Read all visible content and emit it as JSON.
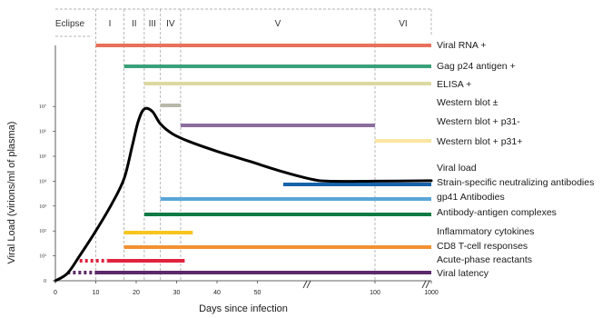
{
  "chart_data": {
    "type": "line",
    "xlabel": "Days since infection",
    "ylabel": "Viral Load (virions/ml of plasma)",
    "x_ticks": [
      "0",
      "10",
      "20",
      "30",
      "40",
      "50",
      "100",
      "1000"
    ],
    "y_ticks": [
      "0",
      "10¹",
      "10²",
      "10³",
      "10⁴",
      "10⁵",
      "10⁶",
      "10⁷"
    ],
    "stages": [
      "Eclipse",
      "I",
      "II",
      "III",
      "IV",
      "V",
      "VI"
    ],
    "stage_boundaries_days": [
      10,
      17,
      22,
      26,
      31,
      100
    ],
    "viral_load_curve": {
      "label": "Viral load",
      "points": [
        {
          "day": 0,
          "log10": 0
        },
        {
          "day": 3,
          "log10": 0.3
        },
        {
          "day": 6,
          "log10": 1
        },
        {
          "day": 10,
          "log10": 2
        },
        {
          "day": 14,
          "log10": 3.1
        },
        {
          "day": 17,
          "log10": 4.1
        },
        {
          "day": 19,
          "log10": 5.4
        },
        {
          "day": 20.5,
          "log10": 6.4
        },
        {
          "day": 22,
          "log10": 6.9
        },
        {
          "day": 24,
          "log10": 6.8
        },
        {
          "day": 26,
          "log10": 6.3
        },
        {
          "day": 29,
          "log10": 5.9
        },
        {
          "day": 33,
          "log10": 5.6
        },
        {
          "day": 40,
          "log10": 5.2
        },
        {
          "day": 48,
          "log10": 4.8
        },
        {
          "day": 60,
          "log10": 4.4
        },
        {
          "day": 72,
          "log10": 4.1
        },
        {
          "day": 80,
          "log10": 4.0
        },
        {
          "day": 100,
          "log10": 4.0
        },
        {
          "day": 1000,
          "log10": 4.02
        }
      ],
      "color": "#000000"
    },
    "markers": [
      {
        "label": "Viral RNA +",
        "start_day": 10,
        "end_day": 1000,
        "color": "#e8705c",
        "dashed_until_day": null
      },
      {
        "label": "Gag p24 antigen +",
        "start_day": 17,
        "end_day": 1000,
        "color": "#3aa07a",
        "dashed_until_day": null
      },
      {
        "label": "ELISA +",
        "start_day": 22,
        "end_day": 1000,
        "color": "#dcd9a0",
        "dashed_until_day": null
      },
      {
        "label": "Western blot ±",
        "start_day": 26,
        "end_day": 31,
        "color": "#b9b9aa",
        "dashed_until_day": null
      },
      {
        "label": "Western blot + p31-",
        "start_day": 31,
        "end_day": 100,
        "color": "#8c6d9e",
        "dashed_until_day": null
      },
      {
        "label": "Western blot + p31+",
        "start_day": 100,
        "end_day": 1000,
        "color": "#fbe4a0",
        "dashed_until_day": null
      },
      {
        "label": "Strain-specific neutralizing antibodies",
        "start_day": 61,
        "end_day": 1000,
        "color": "#1563a8",
        "dashed_until_day": null
      },
      {
        "label": "gp41 Antibodies",
        "start_day": 26,
        "end_day": 1000,
        "color": "#5aa6d6",
        "dashed_until_day": null
      },
      {
        "label": "Antibody-antigen complexes",
        "start_day": 22,
        "end_day": 1000,
        "color": "#0d7a43",
        "dashed_until_day": null
      },
      {
        "label": "Inflammatory cytokines",
        "start_day": 17,
        "end_day": 34,
        "color": "#f7c51d",
        "dashed_until_day": null
      },
      {
        "label": "CD8 T-cell responses",
        "start_day": 17,
        "end_day": 1000,
        "color": "#f39131",
        "dashed_until_day": null
      },
      {
        "label": "Acute-phase reactants",
        "start_day": 6,
        "end_day": 32,
        "color": "#e0243e",
        "dashed_until_day": 13
      },
      {
        "label": "Viral latency",
        "start_day": 3,
        "end_day": 1000,
        "color": "#5c2a6a",
        "dashed_until_day": 10
      }
    ],
    "grid": false
  }
}
